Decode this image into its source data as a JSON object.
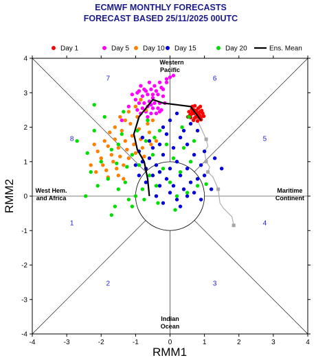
{
  "chart_data": {
    "type": "scatter",
    "title": "ECMWF MONTHLY FORECASTS",
    "subtitle": "FORECAST  BASED 25/11/2025 00UTC",
    "xlabel": "RMM1",
    "ylabel": "RMM2",
    "xlim": [
      -4,
      4
    ],
    "ylim": [
      -4,
      4
    ],
    "x_ticks": [
      "-4",
      "-3",
      "-2",
      "-1",
      "0",
      "1",
      "2",
      "3",
      "4"
    ],
    "y_ticks": [
      "-4",
      "-3",
      "-2",
      "-1",
      "0",
      "1",
      "2",
      "3",
      "4"
    ],
    "legend_position": "top",
    "legend": [
      {
        "name": "Day 1",
        "color": "#ff0000"
      },
      {
        "name": "Day 5",
        "color": "#ff00ff"
      },
      {
        "name": "Day 10",
        "color": "#ff8000"
      },
      {
        "name": "Day 15",
        "color": "#0000dd"
      },
      {
        "name": "Day 20",
        "color": "#00dd00"
      },
      {
        "name": "Ens. Mean",
        "color": "#000000"
      }
    ],
    "region_labels": [
      {
        "text": "Western",
        "x": 0.05,
        "y": 3.82
      },
      {
        "text": "Pacific",
        "x": 0.0,
        "y": 3.6
      },
      {
        "text": "Maritime",
        "x": 3.48,
        "y": 0.1
      },
      {
        "text": "Continent",
        "x": 3.48,
        "y": -0.12
      },
      {
        "text": "Indian",
        "x": 0.0,
        "y": -3.62
      },
      {
        "text": "Ocean",
        "x": 0.0,
        "y": -3.84
      },
      {
        "text": "West Hem.",
        "x": -3.45,
        "y": 0.1
      },
      {
        "text": "and Africa",
        "x": -3.45,
        "y": -0.12
      }
    ],
    "phase_labels": [
      {
        "text": "1",
        "x": -2.85,
        "y": -0.85
      },
      {
        "text": "2",
        "x": -1.8,
        "y": -2.6
      },
      {
        "text": "3",
        "x": 1.3,
        "y": -2.6
      },
      {
        "text": "4",
        "x": 2.75,
        "y": -0.85
      },
      {
        "text": "5",
        "x": 2.75,
        "y": 1.6
      },
      {
        "text": "6",
        "x": 1.3,
        "y": 3.35
      },
      {
        "text": "7",
        "x": -1.8,
        "y": 3.35
      },
      {
        "text": "8",
        "x": -2.85,
        "y": 1.6
      }
    ],
    "observed_path": {
      "color": "#b3b3b3",
      "points": [
        [
          1.85,
          -0.85
        ],
        [
          1.8,
          -0.6
        ],
        [
          1.55,
          -0.35
        ],
        [
          1.45,
          -0.2
        ],
        [
          1.4,
          0.2
        ],
        [
          1.25,
          0.55
        ],
        [
          1.1,
          0.7
        ],
        [
          1.15,
          0.85
        ],
        [
          1.05,
          1.0
        ],
        [
          1.0,
          1.3
        ],
        [
          1.1,
          1.45
        ],
        [
          1.05,
          1.65
        ],
        [
          0.75,
          2.3
        ]
      ],
      "markers": [
        [
          1.85,
          -0.85
        ],
        [
          1.4,
          0.2
        ],
        [
          1.1,
          0.7
        ],
        [
          1.05,
          1.0
        ],
        [
          1.05,
          1.65
        ]
      ]
    },
    "ensemble_mean": [
      [
        0.9,
        2.2
      ],
      [
        0.6,
        2.6
      ],
      [
        0.2,
        2.65
      ],
      [
        -0.2,
        2.7
      ],
      [
        -0.5,
        2.8
      ],
      [
        -0.9,
        2.3
      ],
      [
        -1.05,
        1.8
      ],
      [
        -0.95,
        1.35
      ],
      [
        -0.75,
        1.0
      ],
      [
        -0.65,
        0.5
      ],
      [
        -0.6,
        0.0
      ]
    ],
    "series": [
      {
        "name": "Day 1",
        "color": "#ff0000",
        "points": [
          [
            0.55,
            2.45
          ],
          [
            0.62,
            2.38
          ],
          [
            0.7,
            2.5
          ],
          [
            0.78,
            2.42
          ],
          [
            0.85,
            2.35
          ],
          [
            0.92,
            2.48
          ],
          [
            0.6,
            2.28
          ],
          [
            0.68,
            2.2
          ],
          [
            0.75,
            2.3
          ],
          [
            0.82,
            2.55
          ],
          [
            0.9,
            2.22
          ],
          [
            0.98,
            2.32
          ],
          [
            0.65,
            2.6
          ],
          [
            0.72,
            2.62
          ],
          [
            0.8,
            2.18
          ],
          [
            0.88,
            2.6
          ],
          [
            0.58,
            2.35
          ],
          [
            0.95,
            2.4
          ],
          [
            0.7,
            2.4
          ],
          [
            0.76,
            2.48
          ],
          [
            0.84,
            2.28
          ],
          [
            0.52,
            2.3
          ],
          [
            0.63,
            2.52
          ],
          [
            0.9,
            2.3
          ],
          [
            0.8,
            2.38
          ],
          [
            0.72,
            2.27
          ],
          [
            0.66,
            2.45
          ],
          [
            0.87,
            2.45
          ]
        ]
      },
      {
        "name": "Day 5",
        "color": "#ff00ff",
        "points": [
          [
            0.0,
            3.45
          ],
          [
            -0.1,
            3.3
          ],
          [
            -0.25,
            3.15
          ],
          [
            -0.3,
            3.3
          ],
          [
            -0.45,
            3.2
          ],
          [
            -0.55,
            3.1
          ],
          [
            -0.7,
            3.05
          ],
          [
            -0.85,
            3.2
          ],
          [
            -0.65,
            2.95
          ],
          [
            -0.8,
            2.9
          ],
          [
            -0.95,
            3.0
          ],
          [
            -0.5,
            2.85
          ],
          [
            -0.35,
            2.95
          ],
          [
            -0.2,
            2.9
          ],
          [
            -0.6,
            2.75
          ],
          [
            -0.75,
            2.7
          ],
          [
            -0.9,
            2.7
          ],
          [
            -0.45,
            2.7
          ],
          [
            -0.3,
            2.7
          ],
          [
            -0.65,
            2.6
          ],
          [
            -0.8,
            2.55
          ],
          [
            -0.5,
            2.55
          ],
          [
            -0.35,
            2.55
          ],
          [
            -0.95,
            2.5
          ],
          [
            -0.7,
            2.45
          ],
          [
            -0.55,
            2.4
          ],
          [
            -0.4,
            2.4
          ],
          [
            -0.25,
            2.5
          ],
          [
            -1.0,
            2.8
          ],
          [
            -1.1,
            2.95
          ],
          [
            -0.2,
            3.1
          ],
          [
            -0.6,
            3.3
          ],
          [
            -0.85,
            2.4
          ],
          [
            -0.15,
            2.7
          ],
          [
            -0.4,
            3.05
          ],
          [
            -0.75,
            3.1
          ],
          [
            -1.2,
            2.6
          ],
          [
            -0.5,
            2.95
          ],
          [
            -0.3,
            2.45
          ],
          [
            -0.65,
            2.3
          ],
          [
            -1.4,
            2.2
          ],
          [
            -0.9,
            3.05
          ],
          [
            -0.1,
            3.4
          ],
          [
            0.1,
            3.5
          ],
          [
            -1.0,
            2.6
          ],
          [
            -0.55,
            2.65
          ]
        ]
      },
      {
        "name": "Day 10",
        "color": "#ff8000",
        "points": [
          [
            -2.2,
            1.5
          ],
          [
            -2.1,
            1.3
          ],
          [
            -2.0,
            1.1
          ],
          [
            -1.95,
            0.9
          ],
          [
            -1.85,
            0.75
          ],
          [
            -1.8,
            1.45
          ],
          [
            -1.7,
            1.2
          ],
          [
            -1.65,
            1.0
          ],
          [
            -1.6,
            1.65
          ],
          [
            -1.55,
            0.8
          ],
          [
            -1.5,
            1.4
          ],
          [
            -1.45,
            1.15
          ],
          [
            -1.4,
            1.9
          ],
          [
            -1.35,
            0.9
          ],
          [
            -1.3,
            1.6
          ],
          [
            -1.25,
            1.35
          ],
          [
            -1.2,
            1.1
          ],
          [
            -1.15,
            2.1
          ],
          [
            -1.1,
            1.75
          ],
          [
            -1.05,
            1.5
          ],
          [
            -1.0,
            1.25
          ],
          [
            -0.95,
            2.3
          ],
          [
            -0.9,
            1.95
          ],
          [
            -0.85,
            1.65
          ],
          [
            -0.8,
            1.4
          ],
          [
            -0.75,
            1.15
          ],
          [
            -0.7,
            2.5
          ],
          [
            -0.65,
            2.1
          ],
          [
            -0.6,
            1.85
          ],
          [
            -0.55,
            1.5
          ],
          [
            -2.3,
            0.9
          ],
          [
            -2.15,
            0.7
          ],
          [
            -1.9,
            1.6
          ],
          [
            -1.75,
            1.85
          ],
          [
            -1.6,
            2.0
          ],
          [
            -1.45,
            2.3
          ],
          [
            -1.3,
            2.2
          ],
          [
            -1.2,
            2.45
          ],
          [
            -1.0,
            2.6
          ],
          [
            -0.85,
            2.8
          ],
          [
            -1.5,
            0.6
          ],
          [
            -1.35,
            0.5
          ],
          [
            -1.8,
            0.55
          ],
          [
            -0.5,
            2.2
          ],
          [
            -0.4,
            1.6
          ]
        ]
      },
      {
        "name": "Day 15",
        "color": "#0000dd",
        "points": [
          [
            -0.9,
            1.3
          ],
          [
            -0.8,
            1.0
          ],
          [
            -0.7,
            0.8
          ],
          [
            -0.6,
            1.1
          ],
          [
            -0.5,
            0.6
          ],
          [
            -0.4,
            0.9
          ],
          [
            -0.3,
            0.7
          ],
          [
            -0.2,
            1.2
          ],
          [
            -0.1,
            0.5
          ],
          [
            0.0,
            0.8
          ],
          [
            0.1,
            0.3
          ],
          [
            0.2,
            1.0
          ],
          [
            0.3,
            0.6
          ],
          [
            0.4,
            0.2
          ],
          [
            0.5,
            0.8
          ],
          [
            0.6,
            0.4
          ],
          [
            0.7,
            0.1
          ],
          [
            0.8,
            0.5
          ],
          [
            0.9,
            -0.1
          ],
          [
            -0.3,
            0.3
          ],
          [
            -0.4,
            0.0
          ],
          [
            -0.2,
            -0.2
          ],
          [
            0.0,
            0.1
          ],
          [
            0.2,
            -0.1
          ],
          [
            -0.5,
            1.4
          ],
          [
            -0.6,
            1.6
          ],
          [
            -0.3,
            1.5
          ],
          [
            0.1,
            1.4
          ],
          [
            0.3,
            1.7
          ],
          [
            0.5,
            1.5
          ],
          [
            0.7,
            1.2
          ],
          [
            1.0,
            1.3
          ],
          [
            0.4,
            1.9
          ],
          [
            0.6,
            2.1
          ],
          [
            0.8,
            1.9
          ],
          [
            -0.1,
            1.8
          ],
          [
            -0.2,
            2.0
          ],
          [
            0.0,
            2.2
          ],
          [
            0.2,
            2.4
          ],
          [
            0.3,
            -0.3
          ],
          [
            0.5,
            0.0
          ],
          [
            -0.7,
            0.4
          ],
          [
            -0.9,
            0.6
          ],
          [
            -1.0,
            0.9
          ],
          [
            -0.8,
            1.7
          ],
          [
            0.9,
            0.9
          ],
          [
            1.2,
            0.2
          ],
          [
            1.3,
            1.1
          ],
          [
            1.5,
            0.8
          ],
          [
            1.0,
            0.6
          ]
        ]
      },
      {
        "name": "Day 20",
        "color": "#00dd00",
        "points": [
          [
            -2.7,
            1.6
          ],
          [
            -2.4,
            1.25
          ],
          [
            -2.3,
            0.7
          ],
          [
            -2.2,
            1.9
          ],
          [
            -2.1,
            0.3
          ],
          [
            -2.0,
            1.0
          ],
          [
            -1.9,
            2.3
          ],
          [
            -1.8,
            0.5
          ],
          [
            -1.7,
            1.35
          ],
          [
            -1.6,
            -0.3
          ],
          [
            -1.5,
            0.2
          ],
          [
            -1.4,
            1.8
          ],
          [
            -1.3,
            0.4
          ],
          [
            -1.2,
            -0.1
          ],
          [
            -1.1,
            1.2
          ],
          [
            -1.0,
            0.0
          ],
          [
            -0.9,
            0.9
          ],
          [
            -0.8,
            0.2
          ],
          [
            -0.7,
            1.6
          ],
          [
            -0.6,
            0.6
          ],
          [
            -0.5,
            1.2
          ],
          [
            -0.4,
            0.3
          ],
          [
            -0.3,
            1.9
          ],
          [
            -0.2,
            0.8
          ],
          [
            -0.1,
            1.5
          ],
          [
            0.0,
            0.4
          ],
          [
            0.1,
            1.1
          ],
          [
            0.2,
            0.0
          ],
          [
            0.3,
            0.7
          ],
          [
            0.4,
            1.4
          ],
          [
            0.5,
            0.1
          ],
          [
            0.6,
            1.0
          ],
          [
            0.7,
            1.6
          ],
          [
            0.8,
            0.3
          ],
          [
            -2.2,
            2.65
          ],
          [
            -1.5,
            1.5
          ],
          [
            -1.25,
            0.85
          ],
          [
            -0.95,
            1.9
          ],
          [
            -0.65,
            2.2
          ],
          [
            -0.35,
            -0.2
          ],
          [
            0.35,
            2.0
          ],
          [
            0.55,
            2.3
          ],
          [
            -1.7,
            -0.55
          ],
          [
            -1.1,
            -0.3
          ],
          [
            -0.75,
            -0.1
          ],
          [
            0.15,
            -0.4
          ],
          [
            -1.35,
            2.45
          ],
          [
            -2.45,
            0.0
          ],
          [
            -1.55,
            0.95
          ],
          [
            -0.45,
            1.7
          ],
          [
            1.05,
            0.35
          ]
        ]
      }
    ]
  }
}
